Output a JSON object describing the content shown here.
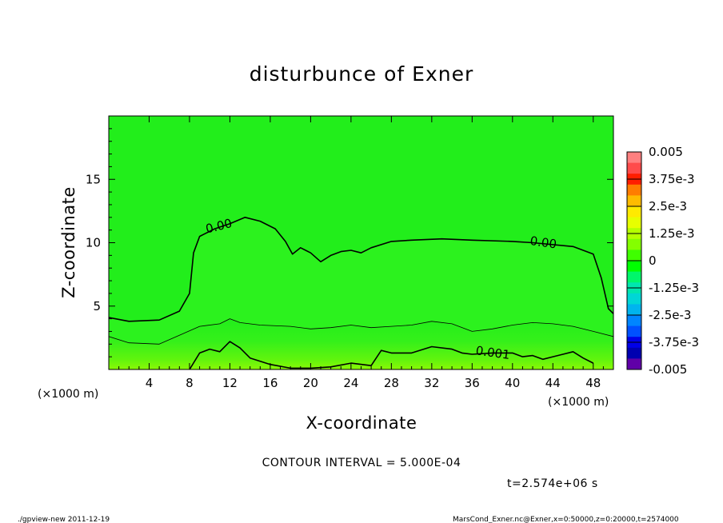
{
  "chart_data": {
    "type": "contour",
    "title": "disturbunce of Exner",
    "xlabel": "X-coordinate",
    "ylabel": "Z-coordinate",
    "x_unit_left": "(×1000 m)",
    "x_unit_right": "(×1000 m)",
    "xlim": [
      0,
      50
    ],
    "ylim": [
      0,
      20
    ],
    "x_ticks": [
      4,
      8,
      12,
      16,
      20,
      24,
      28,
      32,
      36,
      40,
      44,
      48
    ],
    "y_ticks": [
      5,
      10,
      15
    ],
    "colorbar": {
      "labels": [
        "0.005",
        "3.75e-3",
        "2.5e-3",
        "1.25e-3",
        "0",
        "-1.25e-3",
        "-2.5e-3",
        "-3.75e-3",
        "-0.005"
      ],
      "colors": [
        "#ff8080",
        "#ff4b4b",
        "#ff1e00",
        "#ff7d00",
        "#ffbb00",
        "#ffea00",
        "#e7ff00",
        "#b5ff00",
        "#84ff00",
        "#3fff00",
        "#00ff00",
        "#00f66b",
        "#00e6ae",
        "#00d6d6",
        "#00b4ee",
        "#0085ff",
        "#0050ff",
        "#0000e8",
        "#0000b0",
        "#6000a8"
      ]
    },
    "background_color": "#22ee1b",
    "contours": [
      {
        "level": "0.00",
        "points": [
          [
            0,
            4.1
          ],
          [
            2,
            3.8
          ],
          [
            5,
            3.9
          ],
          [
            7,
            4.6
          ],
          [
            8,
            6
          ],
          [
            8.4,
            9.2
          ],
          [
            9,
            10.5
          ],
          [
            10.5,
            11.1
          ],
          [
            12,
            11.5
          ],
          [
            13.5,
            12.0
          ],
          [
            15,
            11.7
          ],
          [
            16.5,
            11.1
          ],
          [
            17.5,
            10.1
          ],
          [
            18.2,
            9.1
          ],
          [
            19,
            9.6
          ],
          [
            20,
            9.2
          ],
          [
            21,
            8.5
          ],
          [
            22,
            9.0
          ],
          [
            23,
            9.3
          ],
          [
            24,
            9.4
          ],
          [
            25,
            9.2
          ],
          [
            26,
            9.6
          ],
          [
            28,
            10.1
          ],
          [
            30,
            10.2
          ],
          [
            33,
            10.3
          ],
          [
            36,
            10.2
          ],
          [
            40,
            10.1
          ],
          [
            42,
            10.0
          ],
          [
            46,
            9.7
          ],
          [
            48,
            9.1
          ],
          [
            48.8,
            7.2
          ],
          [
            49.5,
            4.8
          ],
          [
            50,
            4.4
          ]
        ],
        "labels": [
          {
            "text": "0.00",
            "x": 11,
            "y": 11.0
          },
          {
            "text": "0.00",
            "x": 43,
            "y": 9.7
          }
        ]
      },
      {
        "level": "0.0005",
        "points": [
          [
            0,
            2.6
          ],
          [
            2,
            2.1
          ],
          [
            5,
            2.0
          ],
          [
            7,
            2.7
          ],
          [
            9,
            3.4
          ],
          [
            11,
            3.6
          ],
          [
            12,
            4.0
          ],
          [
            13,
            3.7
          ],
          [
            15,
            3.5
          ],
          [
            18,
            3.4
          ],
          [
            20,
            3.2
          ],
          [
            22,
            3.3
          ],
          [
            24,
            3.5
          ],
          [
            26,
            3.3
          ],
          [
            28,
            3.4
          ],
          [
            30,
            3.5
          ],
          [
            32,
            3.8
          ],
          [
            34,
            3.6
          ],
          [
            36,
            3.0
          ],
          [
            38,
            3.2
          ],
          [
            40,
            3.5
          ],
          [
            42,
            3.7
          ],
          [
            44,
            3.6
          ],
          [
            46,
            3.4
          ],
          [
            48,
            3.0
          ],
          [
            50,
            2.6
          ]
        ],
        "labels": []
      },
      {
        "level": "0.001",
        "points": [
          [
            8,
            0
          ],
          [
            9,
            1.3
          ],
          [
            10,
            1.6
          ],
          [
            11,
            1.4
          ],
          [
            12,
            2.2
          ],
          [
            13,
            1.7
          ],
          [
            14,
            0.9
          ],
          [
            16,
            0.4
          ],
          [
            18,
            0.1
          ],
          [
            20,
            0.1
          ],
          [
            22,
            0.2
          ],
          [
            24,
            0.5
          ],
          [
            26,
            0.3
          ],
          [
            27,
            1.5
          ],
          [
            28,
            1.3
          ],
          [
            30,
            1.3
          ],
          [
            32,
            1.8
          ],
          [
            34,
            1.6
          ],
          [
            35,
            1.3
          ],
          [
            36,
            1.2
          ],
          [
            38,
            1.3
          ],
          [
            40,
            1.3
          ],
          [
            41,
            1.0
          ],
          [
            42,
            1.1
          ],
          [
            43,
            0.8
          ],
          [
            44,
            1.0
          ],
          [
            45,
            1.2
          ],
          [
            46,
            1.4
          ],
          [
            47,
            0.9
          ],
          [
            48,
            0.5
          ]
        ],
        "labels": [
          {
            "text": "0.001",
            "x": 38,
            "y": 1.0
          }
        ]
      }
    ]
  },
  "footer": {
    "contour_interval": "CONTOUR INTERVAL = 5.000E-04",
    "time": "t=2.574e+06 s",
    "program": "./gpview-new  2011-12-19",
    "source": "MarsCond_Exner.nc@Exner,x=0:50000,z=0:20000,t=2574000"
  }
}
